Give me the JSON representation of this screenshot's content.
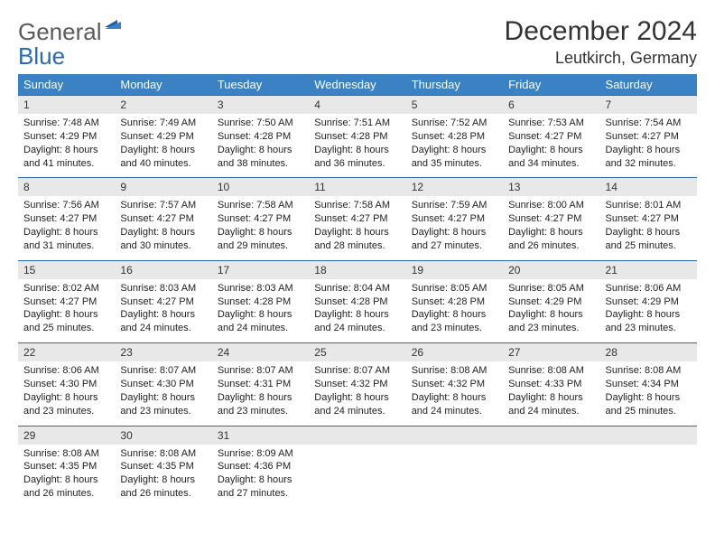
{
  "logo": {
    "line1": "General",
    "line2": "Blue"
  },
  "title": "December 2024",
  "location": "Leutkirch, Germany",
  "colors": {
    "header_bg": "#3b82c4",
    "header_text": "#ffffff",
    "daynum_bg": "#e8e8e8",
    "border": "#2a6ab0",
    "logo_gray": "#5a5a5a",
    "logo_blue": "#2a6ab0",
    "body_text": "#222222"
  },
  "day_headers": [
    "Sunday",
    "Monday",
    "Tuesday",
    "Wednesday",
    "Thursday",
    "Friday",
    "Saturday"
  ],
  "weeks": [
    [
      {
        "n": "1",
        "sr": "Sunrise: 7:48 AM",
        "ss": "Sunset: 4:29 PM",
        "dl1": "Daylight: 8 hours",
        "dl2": "and 41 minutes."
      },
      {
        "n": "2",
        "sr": "Sunrise: 7:49 AM",
        "ss": "Sunset: 4:29 PM",
        "dl1": "Daylight: 8 hours",
        "dl2": "and 40 minutes."
      },
      {
        "n": "3",
        "sr": "Sunrise: 7:50 AM",
        "ss": "Sunset: 4:28 PM",
        "dl1": "Daylight: 8 hours",
        "dl2": "and 38 minutes."
      },
      {
        "n": "4",
        "sr": "Sunrise: 7:51 AM",
        "ss": "Sunset: 4:28 PM",
        "dl1": "Daylight: 8 hours",
        "dl2": "and 36 minutes."
      },
      {
        "n": "5",
        "sr": "Sunrise: 7:52 AM",
        "ss": "Sunset: 4:28 PM",
        "dl1": "Daylight: 8 hours",
        "dl2": "and 35 minutes."
      },
      {
        "n": "6",
        "sr": "Sunrise: 7:53 AM",
        "ss": "Sunset: 4:27 PM",
        "dl1": "Daylight: 8 hours",
        "dl2": "and 34 minutes."
      },
      {
        "n": "7",
        "sr": "Sunrise: 7:54 AM",
        "ss": "Sunset: 4:27 PM",
        "dl1": "Daylight: 8 hours",
        "dl2": "and 32 minutes."
      }
    ],
    [
      {
        "n": "8",
        "sr": "Sunrise: 7:56 AM",
        "ss": "Sunset: 4:27 PM",
        "dl1": "Daylight: 8 hours",
        "dl2": "and 31 minutes."
      },
      {
        "n": "9",
        "sr": "Sunrise: 7:57 AM",
        "ss": "Sunset: 4:27 PM",
        "dl1": "Daylight: 8 hours",
        "dl2": "and 30 minutes."
      },
      {
        "n": "10",
        "sr": "Sunrise: 7:58 AM",
        "ss": "Sunset: 4:27 PM",
        "dl1": "Daylight: 8 hours",
        "dl2": "and 29 minutes."
      },
      {
        "n": "11",
        "sr": "Sunrise: 7:58 AM",
        "ss": "Sunset: 4:27 PM",
        "dl1": "Daylight: 8 hours",
        "dl2": "and 28 minutes."
      },
      {
        "n": "12",
        "sr": "Sunrise: 7:59 AM",
        "ss": "Sunset: 4:27 PM",
        "dl1": "Daylight: 8 hours",
        "dl2": "and 27 minutes."
      },
      {
        "n": "13",
        "sr": "Sunrise: 8:00 AM",
        "ss": "Sunset: 4:27 PM",
        "dl1": "Daylight: 8 hours",
        "dl2": "and 26 minutes."
      },
      {
        "n": "14",
        "sr": "Sunrise: 8:01 AM",
        "ss": "Sunset: 4:27 PM",
        "dl1": "Daylight: 8 hours",
        "dl2": "and 25 minutes."
      }
    ],
    [
      {
        "n": "15",
        "sr": "Sunrise: 8:02 AM",
        "ss": "Sunset: 4:27 PM",
        "dl1": "Daylight: 8 hours",
        "dl2": "and 25 minutes."
      },
      {
        "n": "16",
        "sr": "Sunrise: 8:03 AM",
        "ss": "Sunset: 4:27 PM",
        "dl1": "Daylight: 8 hours",
        "dl2": "and 24 minutes."
      },
      {
        "n": "17",
        "sr": "Sunrise: 8:03 AM",
        "ss": "Sunset: 4:28 PM",
        "dl1": "Daylight: 8 hours",
        "dl2": "and 24 minutes."
      },
      {
        "n": "18",
        "sr": "Sunrise: 8:04 AM",
        "ss": "Sunset: 4:28 PM",
        "dl1": "Daylight: 8 hours",
        "dl2": "and 24 minutes."
      },
      {
        "n": "19",
        "sr": "Sunrise: 8:05 AM",
        "ss": "Sunset: 4:28 PM",
        "dl1": "Daylight: 8 hours",
        "dl2": "and 23 minutes."
      },
      {
        "n": "20",
        "sr": "Sunrise: 8:05 AM",
        "ss": "Sunset: 4:29 PM",
        "dl1": "Daylight: 8 hours",
        "dl2": "and 23 minutes."
      },
      {
        "n": "21",
        "sr": "Sunrise: 8:06 AM",
        "ss": "Sunset: 4:29 PM",
        "dl1": "Daylight: 8 hours",
        "dl2": "and 23 minutes."
      }
    ],
    [
      {
        "n": "22",
        "sr": "Sunrise: 8:06 AM",
        "ss": "Sunset: 4:30 PM",
        "dl1": "Daylight: 8 hours",
        "dl2": "and 23 minutes."
      },
      {
        "n": "23",
        "sr": "Sunrise: 8:07 AM",
        "ss": "Sunset: 4:30 PM",
        "dl1": "Daylight: 8 hours",
        "dl2": "and 23 minutes."
      },
      {
        "n": "24",
        "sr": "Sunrise: 8:07 AM",
        "ss": "Sunset: 4:31 PM",
        "dl1": "Daylight: 8 hours",
        "dl2": "and 23 minutes."
      },
      {
        "n": "25",
        "sr": "Sunrise: 8:07 AM",
        "ss": "Sunset: 4:32 PM",
        "dl1": "Daylight: 8 hours",
        "dl2": "and 24 minutes."
      },
      {
        "n": "26",
        "sr": "Sunrise: 8:08 AM",
        "ss": "Sunset: 4:32 PM",
        "dl1": "Daylight: 8 hours",
        "dl2": "and 24 minutes."
      },
      {
        "n": "27",
        "sr": "Sunrise: 8:08 AM",
        "ss": "Sunset: 4:33 PM",
        "dl1": "Daylight: 8 hours",
        "dl2": "and 24 minutes."
      },
      {
        "n": "28",
        "sr": "Sunrise: 8:08 AM",
        "ss": "Sunset: 4:34 PM",
        "dl1": "Daylight: 8 hours",
        "dl2": "and 25 minutes."
      }
    ],
    [
      {
        "n": "29",
        "sr": "Sunrise: 8:08 AM",
        "ss": "Sunset: 4:35 PM",
        "dl1": "Daylight: 8 hours",
        "dl2": "and 26 minutes."
      },
      {
        "n": "30",
        "sr": "Sunrise: 8:08 AM",
        "ss": "Sunset: 4:35 PM",
        "dl1": "Daylight: 8 hours",
        "dl2": "and 26 minutes."
      },
      {
        "n": "31",
        "sr": "Sunrise: 8:09 AM",
        "ss": "Sunset: 4:36 PM",
        "dl1": "Daylight: 8 hours",
        "dl2": "and 27 minutes."
      },
      {
        "n": "",
        "sr": "",
        "ss": "",
        "dl1": "",
        "dl2": ""
      },
      {
        "n": "",
        "sr": "",
        "ss": "",
        "dl1": "",
        "dl2": ""
      },
      {
        "n": "",
        "sr": "",
        "ss": "",
        "dl1": "",
        "dl2": ""
      },
      {
        "n": "",
        "sr": "",
        "ss": "",
        "dl1": "",
        "dl2": ""
      }
    ]
  ]
}
